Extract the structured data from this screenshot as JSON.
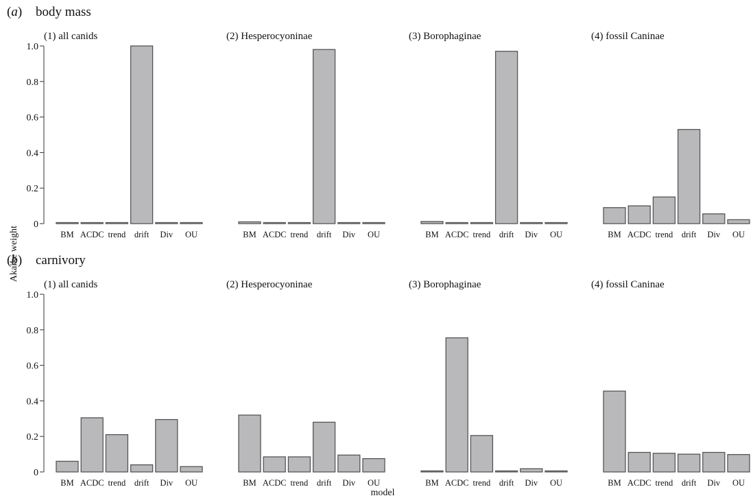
{
  "figure": {
    "ylabel": "Akaike weight",
    "xlabel": "model"
  },
  "chart_data": [
    {
      "type": "bar",
      "letter": "a",
      "title": "body mass",
      "ylim": [
        0,
        1.0
      ],
      "yticks": [
        "0",
        "0.2",
        "0.4",
        "0.6",
        "0.8",
        "1.0"
      ],
      "bar_color": "#b9b9bb",
      "grid": false,
      "subplots": [
        {
          "title": "(1) all canids",
          "categories": [
            "BM",
            "ACDC",
            "trend",
            "drift",
            "Div",
            "OU"
          ],
          "values": [
            0.0,
            0.0,
            0.0,
            1.0,
            0.0,
            0.0
          ]
        },
        {
          "title": "(2) Hesperocyoninae",
          "categories": [
            "BM",
            "ACDC",
            "trend",
            "drift",
            "Div",
            "OU"
          ],
          "values": [
            0.01,
            0.003,
            0.003,
            0.98,
            0.003,
            0.003
          ]
        },
        {
          "title": "(3) Borophaginae",
          "categories": [
            "BM",
            "ACDC",
            "trend",
            "drift",
            "Div",
            "OU"
          ],
          "values": [
            0.012,
            0.003,
            0.003,
            0.97,
            0.003,
            0.003
          ]
        },
        {
          "title": "(4) fossil Caninae",
          "categories": [
            "BM",
            "ACDC",
            "trend",
            "drift",
            "Div",
            "OU"
          ],
          "values": [
            0.09,
            0.1,
            0.15,
            0.53,
            0.055,
            0.022
          ]
        }
      ]
    },
    {
      "type": "bar",
      "letter": "b",
      "title": "carnivory",
      "ylim": [
        0,
        1.0
      ],
      "yticks": [
        "0",
        "0.2",
        "0.4",
        "0.6",
        "0.8",
        "1.0"
      ],
      "bar_color": "#b9b9bb",
      "grid": false,
      "subplots": [
        {
          "title": "(1) all canids",
          "categories": [
            "BM",
            "ACDC",
            "trend",
            "drift",
            "Div",
            "OU"
          ],
          "values": [
            0.06,
            0.305,
            0.21,
            0.04,
            0.295,
            0.03
          ]
        },
        {
          "title": "(2) Hesperocyoninae",
          "categories": [
            "BM",
            "ACDC",
            "trend",
            "drift",
            "Div",
            "OU"
          ],
          "values": [
            0.32,
            0.085,
            0.085,
            0.28,
            0.095,
            0.075
          ]
        },
        {
          "title": "(3) Borophaginae",
          "categories": [
            "BM",
            "ACDC",
            "trend",
            "drift",
            "Div",
            "OU"
          ],
          "values": [
            0.003,
            0.755,
            0.205,
            0.003,
            0.018,
            0.003
          ]
        },
        {
          "title": "(4) fossil Caninae",
          "categories": [
            "BM",
            "ACDC",
            "trend",
            "drift",
            "Div",
            "OU"
          ],
          "values": [
            0.455,
            0.11,
            0.105,
            0.1,
            0.11,
            0.098
          ]
        }
      ]
    }
  ]
}
